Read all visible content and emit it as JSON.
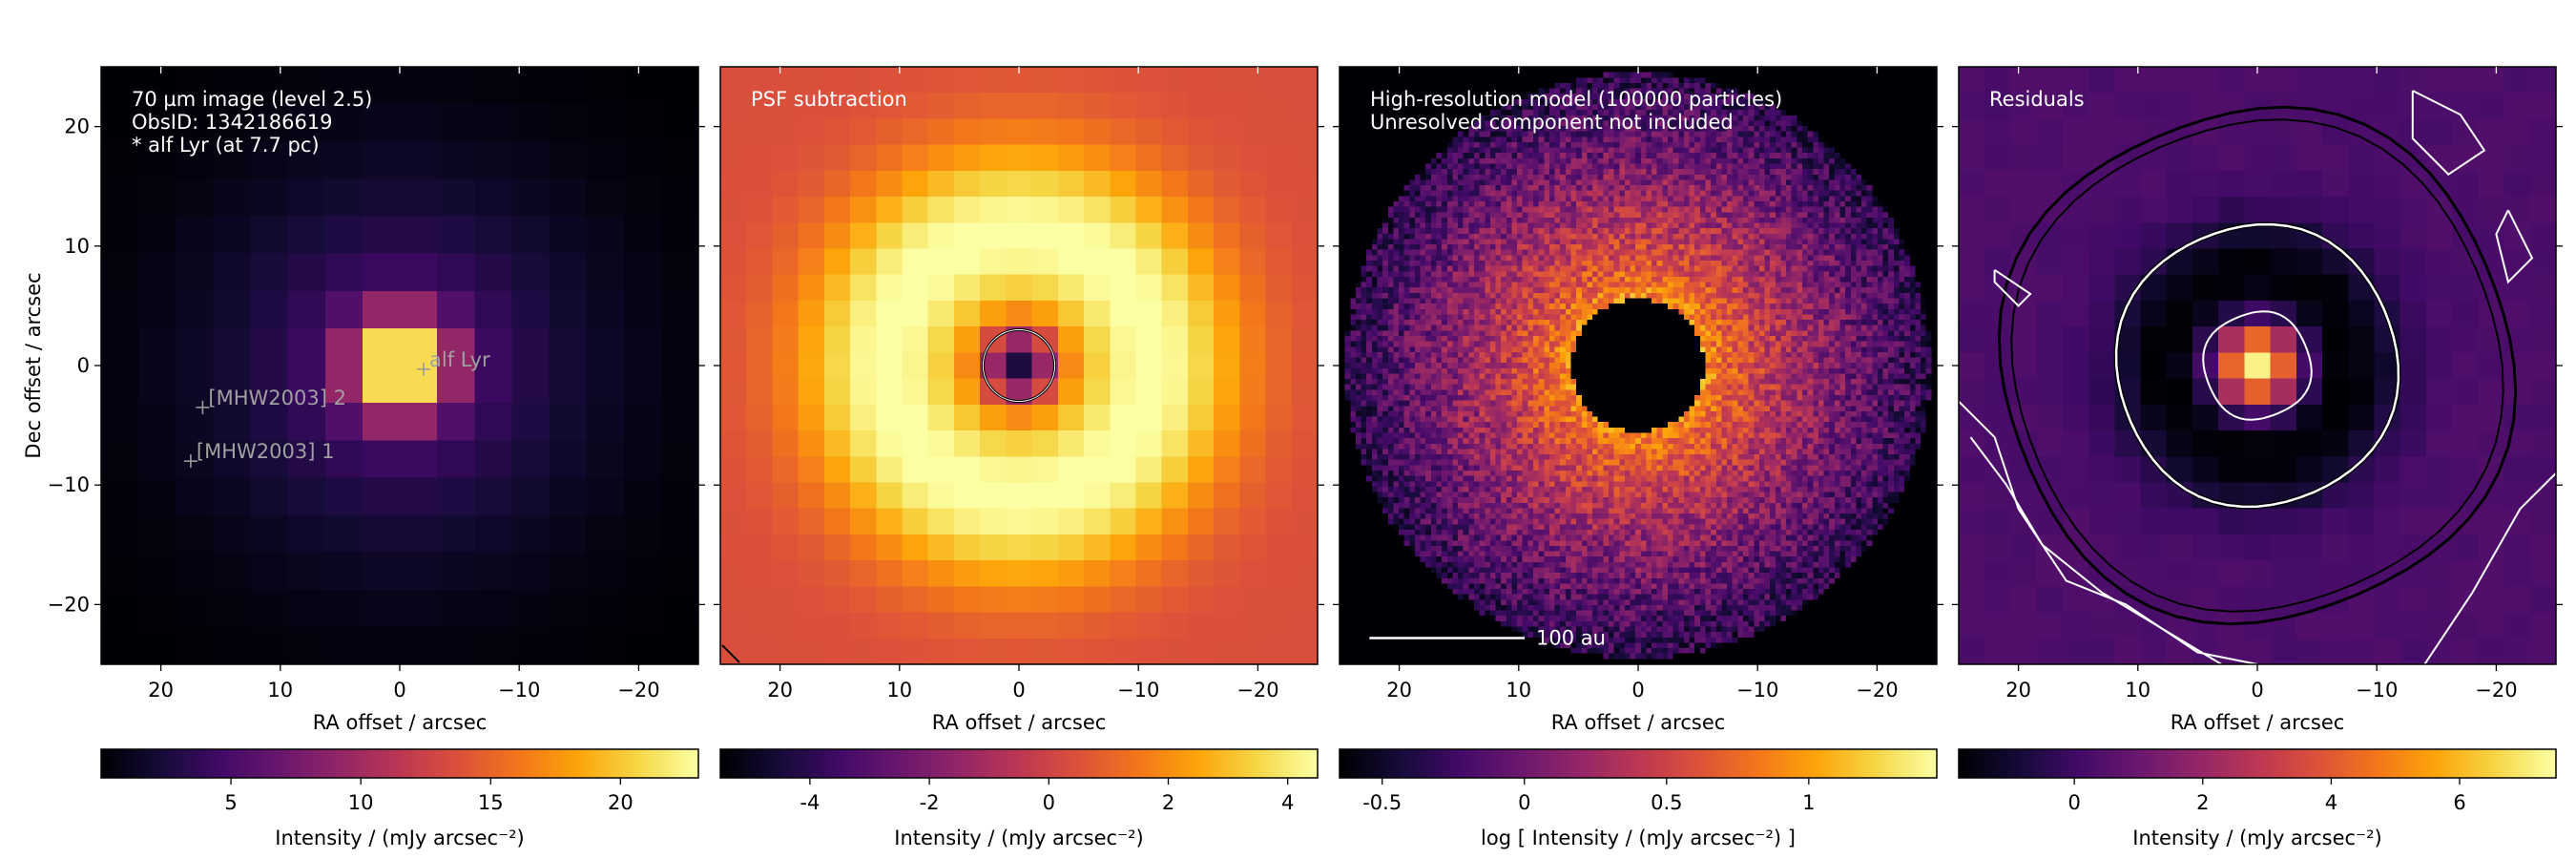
{
  "chart_data": [
    {
      "type": "heatmap",
      "panel": "image",
      "annotations": [
        "70 µm image (level 2.5)",
        "ObsID: 1342186619",
        "* alf Lyr (at 7.7 pc)"
      ],
      "xlabel": "RA offset / arcsec",
      "ylabel": "Dec offset / arcsec",
      "xlim": [
        25,
        -25
      ],
      "ylim": [
        -25,
        25
      ],
      "x_ticks": [
        20,
        10,
        0,
        -10,
        -20
      ],
      "y_ticks": [
        20,
        10,
        0,
        -10,
        -20
      ],
      "colormap": "inferno",
      "colorbar": {
        "label": "Intensity / (mJy arcsec⁻²)",
        "range": [
          0,
          23
        ],
        "ticks": [
          5,
          10,
          15,
          20
        ],
        "tick_labels": [
          "5",
          "10",
          "15",
          "20"
        ]
      },
      "markers": [
        {
          "label": "alf Lyr",
          "x": -2,
          "y": -0.3
        },
        {
          "label": "[MHW2003] 2",
          "x": 16.5,
          "y": -3.5
        },
        {
          "label": "[MHW2003] 1",
          "x": 17.5,
          "y": -8
        }
      ],
      "field": {
        "kind": "peak_plus_halo",
        "pixel_arcsec": 3.2,
        "components": [
          {
            "shape": "gaussian",
            "center": [
              0,
              0
            ],
            "sigma": 2.8,
            "amplitude": 22
          },
          {
            "shape": "gaussian",
            "center": [
              0,
              0
            ],
            "sigma": 11,
            "amplitude": 5
          }
        ]
      }
    },
    {
      "type": "heatmap",
      "panel": "psf_subtraction",
      "annotations": [
        "PSF subtraction"
      ],
      "xlabel": "RA offset / arcsec",
      "xlim": [
        25,
        -25
      ],
      "ylim": [
        -25,
        25
      ],
      "x_ticks": [
        20,
        10,
        0,
        -10,
        -20
      ],
      "colormap": "inferno",
      "colorbar": {
        "label": "Intensity / (mJy arcsec⁻²)",
        "range": [
          -5.5,
          4.5
        ],
        "ticks": [
          -4,
          -2,
          0,
          2,
          4
        ],
        "tick_labels": [
          "-4",
          "-2",
          "0",
          "2",
          "4"
        ]
      },
      "field": {
        "kind": "ring_with_hole",
        "pixel_arcsec": 2.2,
        "ring_radius": 11,
        "ring_width": 5.5,
        "ring_amplitude": 4.2,
        "background": 0.4,
        "center_dip": -5.3,
        "center_sigma": 2.0
      }
    },
    {
      "type": "heatmap",
      "panel": "model",
      "annotations": [
        "High-resolution model (100000 particles)",
        "Unresolved component not included"
      ],
      "xlabel": "RA offset / arcsec",
      "xlim": [
        25,
        -25
      ],
      "ylim": [
        -25,
        25
      ],
      "x_ticks": [
        20,
        10,
        0,
        -10,
        -20
      ],
      "colormap": "inferno",
      "scale_bar": {
        "label": "100 au",
        "length_arcsec": 13
      },
      "colorbar": {
        "label": "log [ Intensity / (mJy arcsec⁻²) ]",
        "range": [
          -0.65,
          1.45
        ],
        "ticks": [
          -0.5,
          0,
          0.5,
          1
        ],
        "tick_labels": [
          "-0.5",
          "0",
          "0.5",
          "1"
        ]
      },
      "field": {
        "kind": "noisy_annulus",
        "pixel_arcsec": 0.45,
        "inner_radius": 5.5,
        "outer_radius": 24.5,
        "peak_value": 1.0,
        "outer_value": -0.35
      }
    },
    {
      "type": "heatmap",
      "panel": "residuals",
      "annotations": [
        "Residuals"
      ],
      "xlabel": "RA offset / arcsec",
      "xlim": [
        25,
        -25
      ],
      "ylim": [
        -25,
        25
      ],
      "x_ticks": [
        20,
        10,
        0,
        -10,
        -20
      ],
      "colormap": "inferno",
      "colorbar": {
        "label": "Intensity / (mJy arcsec⁻²)",
        "range": [
          -1.8,
          7.5
        ],
        "ticks": [
          0,
          2,
          4,
          6
        ],
        "tick_labels": [
          "0",
          "2",
          "4",
          "6"
        ]
      },
      "field": {
        "kind": "peak_with_trough",
        "pixel_arcsec": 2.2,
        "peak_amplitude": 7.2,
        "peak_sigma": 2.3,
        "trough_radius": 7.5,
        "trough_depth": -2.1,
        "trough_width": 3.5,
        "background": 0.3
      }
    }
  ]
}
